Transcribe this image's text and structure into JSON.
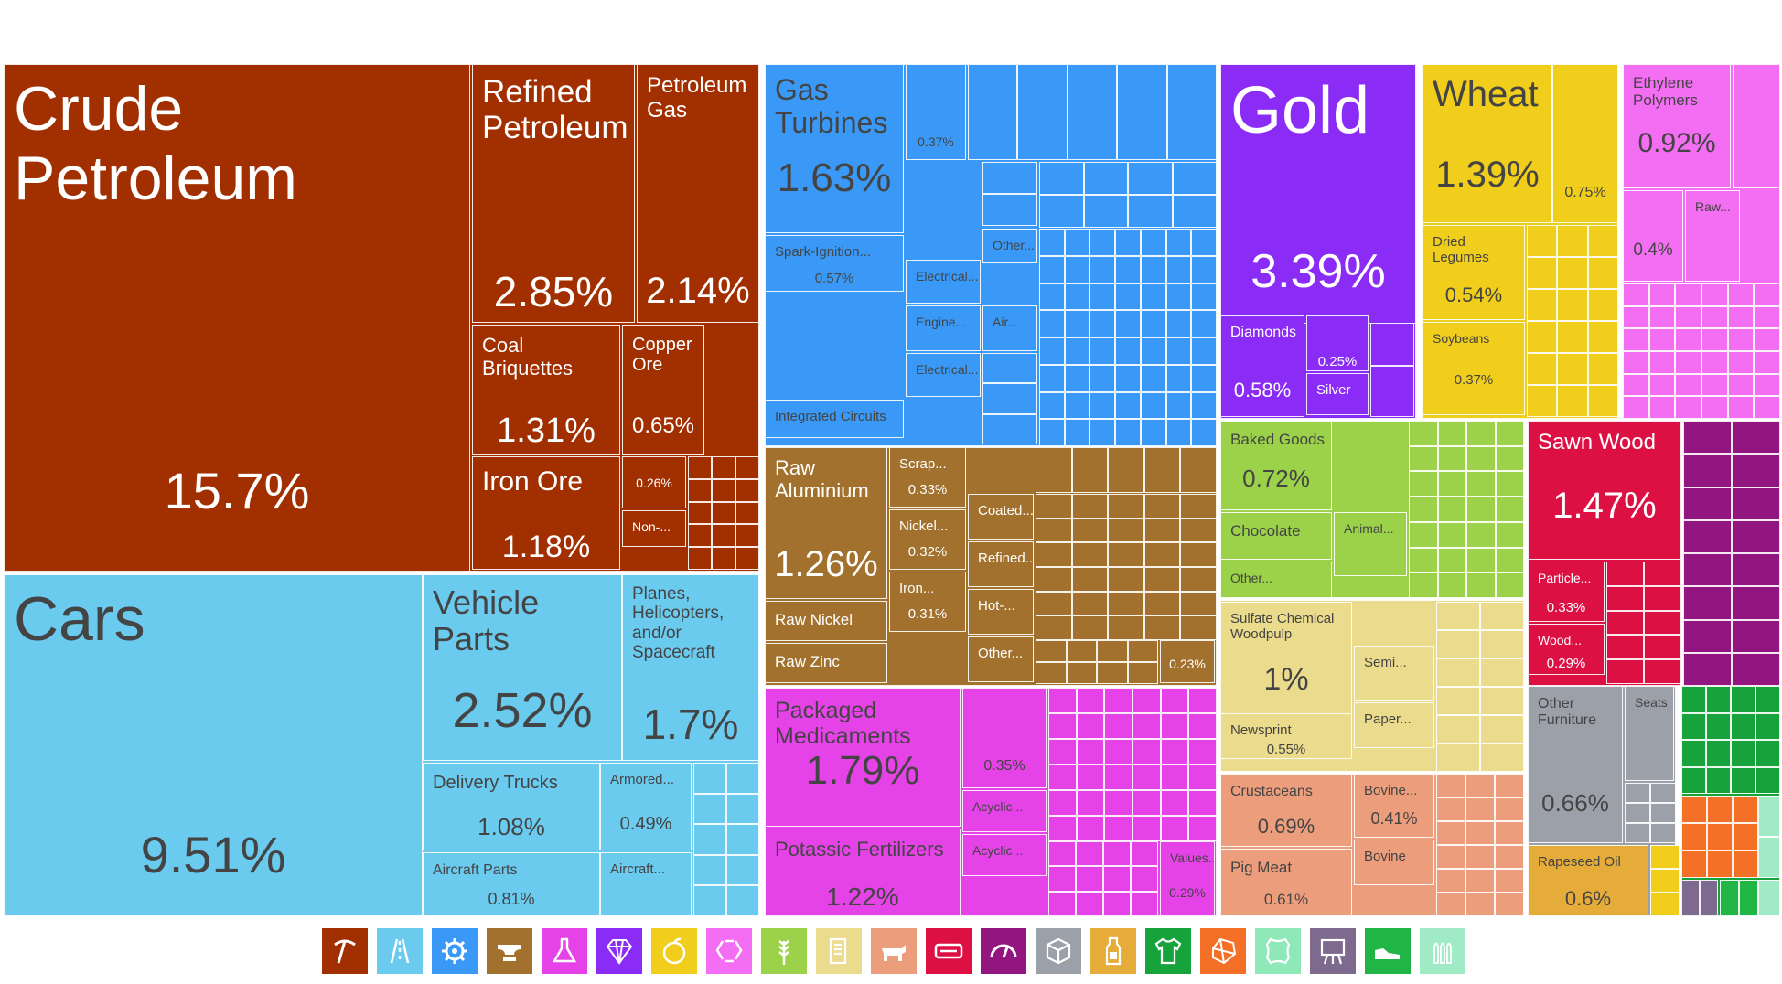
{
  "colors": {
    "mineral": "#a12f00",
    "transport": "#6acbef",
    "machinery": "#3a99f7",
    "metals": "#a2712e",
    "chemicals": "#e543e7",
    "precious": "#8a2cf6",
    "vegetable": "#f1ce1b",
    "plastics": "#f36ef2",
    "foodstuffs": "#9bd24a",
    "paper": "#ebdb8c",
    "animal": "#ec9e7c",
    "wood": "#dd1044",
    "furniture": "#9ca0a9",
    "furniture_dark": "#e6ac3a",
    "textiles": "#16a33c",
    "stone": "#f47026",
    "weapons": "#a0eac5",
    "misc": "#7e6a8e",
    "purple": "#931580",
    "dark_text": "#444444"
  },
  "chart_data": {
    "type": "treemap",
    "title": "",
    "unit": "% of total exports",
    "items": [
      {
        "label": "Crude Petroleum",
        "value": 15.7,
        "group": "mineral"
      },
      {
        "label": "Refined Petroleum",
        "value": 2.85,
        "group": "mineral"
      },
      {
        "label": "Petroleum Gas",
        "value": 2.14,
        "group": "mineral"
      },
      {
        "label": "Coal Briquettes",
        "value": 1.31,
        "group": "mineral"
      },
      {
        "label": "Copper Ore",
        "value": 0.65,
        "group": "mineral"
      },
      {
        "label": "Iron Ore",
        "value": 1.18,
        "group": "mineral"
      },
      {
        "label": "",
        "value": 0.26,
        "group": "mineral"
      },
      {
        "label": "Non-...",
        "value": null,
        "group": "mineral"
      },
      {
        "label": "Cars",
        "value": 9.51,
        "group": "transport"
      },
      {
        "label": "Vehicle Parts",
        "value": 2.52,
        "group": "transport"
      },
      {
        "label": "Planes, Helicopters, and/or Spacecraft",
        "value": 1.7,
        "group": "transport"
      },
      {
        "label": "Delivery Trucks",
        "value": 1.08,
        "group": "transport"
      },
      {
        "label": "Armored...",
        "value": 0.49,
        "group": "transport"
      },
      {
        "label": "Aircraft Parts",
        "value": 0.81,
        "group": "transport"
      },
      {
        "label": "Aircraft...",
        "value": null,
        "group": "transport"
      },
      {
        "label": "Gas Turbines",
        "value": 1.63,
        "group": "machinery"
      },
      {
        "label": "Spark-Ignition...",
        "value": 0.57,
        "group": "machinery"
      },
      {
        "label": "Integrated Circuits",
        "value": null,
        "group": "machinery"
      },
      {
        "label": "",
        "value": 0.37,
        "group": "machinery"
      },
      {
        "label": "Electrical...",
        "value": null,
        "group": "machinery"
      },
      {
        "label": "Engine...",
        "value": null,
        "group": "machinery"
      },
      {
        "label": "Electrical...",
        "value": null,
        "group": "machinery"
      },
      {
        "label": "Other...",
        "value": null,
        "group": "machinery"
      },
      {
        "label": "Air...",
        "value": null,
        "group": "machinery"
      },
      {
        "label": "Raw Aluminium",
        "value": 1.26,
        "group": "metals"
      },
      {
        "label": "Raw Nickel",
        "value": null,
        "group": "metals"
      },
      {
        "label": "Raw Zinc",
        "value": null,
        "group": "metals"
      },
      {
        "label": "Scrap...",
        "value": 0.33,
        "group": "metals"
      },
      {
        "label": "Nickel...",
        "value": 0.32,
        "group": "metals"
      },
      {
        "label": "Iron...",
        "value": 0.31,
        "group": "metals"
      },
      {
        "label": "Coated...",
        "value": null,
        "group": "metals"
      },
      {
        "label": "Refined...",
        "value": null,
        "group": "metals"
      },
      {
        "label": "Hot-...",
        "value": null,
        "group": "metals"
      },
      {
        "label": "Other...",
        "value": null,
        "group": "metals"
      },
      {
        "label": "",
        "value": 0.23,
        "group": "metals"
      },
      {
        "label": "Packaged Medicaments",
        "value": 1.79,
        "group": "chemicals"
      },
      {
        "label": "Potassic Fertilizers",
        "value": 1.22,
        "group": "chemicals"
      },
      {
        "label": "",
        "value": 0.35,
        "group": "chemicals"
      },
      {
        "label": "Acyclic...",
        "value": null,
        "group": "chemicals"
      },
      {
        "label": "Acyclic...",
        "value": null,
        "group": "chemicals"
      },
      {
        "label": "Values...",
        "value": 0.29,
        "group": "chemicals"
      },
      {
        "label": "Gold",
        "value": 3.39,
        "group": "precious"
      },
      {
        "label": "Diamonds",
        "value": 0.58,
        "group": "precious"
      },
      {
        "label": "",
        "value": 0.25,
        "group": "precious"
      },
      {
        "label": "Silver",
        "value": null,
        "group": "precious"
      },
      {
        "label": "Wheat",
        "value": 1.39,
        "group": "vegetable"
      },
      {
        "label": "",
        "value": 0.75,
        "group": "vegetable"
      },
      {
        "label": "Dried Legumes",
        "value": 0.54,
        "group": "vegetable"
      },
      {
        "label": "Soybeans",
        "value": 0.37,
        "group": "vegetable"
      },
      {
        "label": "Ethylene Polymers",
        "value": 0.92,
        "group": "plastics"
      },
      {
        "label": "Raw...",
        "value": null,
        "group": "plastics"
      },
      {
        "label": "",
        "value": 0.4,
        "group": "plastics"
      },
      {
        "label": "Baked Goods",
        "value": 0.72,
        "group": "foodstuffs"
      },
      {
        "label": "Chocolate",
        "value": null,
        "group": "foodstuffs"
      },
      {
        "label": "Other...",
        "value": null,
        "group": "foodstuffs"
      },
      {
        "label": "Animal...",
        "value": null,
        "group": "foodstuffs"
      },
      {
        "label": "Sulfate Chemical Woodpulp",
        "value": 1,
        "group": "paper"
      },
      {
        "label": "Newsprint",
        "value": 0.55,
        "group": "paper"
      },
      {
        "label": "Semi...",
        "value": null,
        "group": "paper"
      },
      {
        "label": "Paper...",
        "value": null,
        "group": "paper"
      },
      {
        "label": "Crustaceans",
        "value": 0.69,
        "group": "animal"
      },
      {
        "label": "Pig Meat",
        "value": 0.61,
        "group": "animal"
      },
      {
        "label": "Bovine...",
        "value": 0.41,
        "group": "animal"
      },
      {
        "label": "Bovine",
        "value": null,
        "group": "animal"
      },
      {
        "label": "Sawn Wood",
        "value": 1.47,
        "group": "wood"
      },
      {
        "label": "Particle...",
        "value": 0.33,
        "group": "wood"
      },
      {
        "label": "Wood...",
        "value": 0.29,
        "group": "wood"
      },
      {
        "label": "Other Furniture",
        "value": 0.66,
        "group": "furniture"
      },
      {
        "label": "Seats",
        "value": null,
        "group": "furniture"
      },
      {
        "label": "Rapeseed Oil",
        "value": 0.6,
        "group": "furniture_dark"
      }
    ]
  },
  "legend": [
    {
      "icon": "mining-pick-icon",
      "color": "#a12f00"
    },
    {
      "icon": "road-icon",
      "color": "#6acbef"
    },
    {
      "icon": "gear-icon",
      "color": "#3a99f7"
    },
    {
      "icon": "anvil-icon",
      "color": "#a2712e"
    },
    {
      "icon": "flask-icon",
      "color": "#e543e7"
    },
    {
      "icon": "diamond-icon",
      "color": "#8a2cf6"
    },
    {
      "icon": "fruit-icon",
      "color": "#f1ce1b"
    },
    {
      "icon": "recycle-icon",
      "color": "#f36ef2"
    },
    {
      "icon": "wheat-icon",
      "color": "#9bd24a"
    },
    {
      "icon": "scroll-icon",
      "color": "#ebdb8c"
    },
    {
      "icon": "cow-icon",
      "color": "#ec9e7c"
    },
    {
      "icon": "ticket-icon",
      "color": "#dd1044"
    },
    {
      "icon": "gauge-icon",
      "color": "#931580"
    },
    {
      "icon": "box-icon",
      "color": "#9ca0a9"
    },
    {
      "icon": "bottle-icon",
      "color": "#e6ac3a"
    },
    {
      "icon": "shirt-icon",
      "color": "#16a33c"
    },
    {
      "icon": "gem-stone-icon",
      "color": "#f47026"
    },
    {
      "icon": "leather-icon",
      "color": "#8ee8b8"
    },
    {
      "icon": "easel-icon",
      "color": "#7e6a8e"
    },
    {
      "icon": "shoe-icon",
      "color": "#20b545"
    },
    {
      "icon": "ammunition-icon",
      "color": "#a0eac5"
    }
  ]
}
